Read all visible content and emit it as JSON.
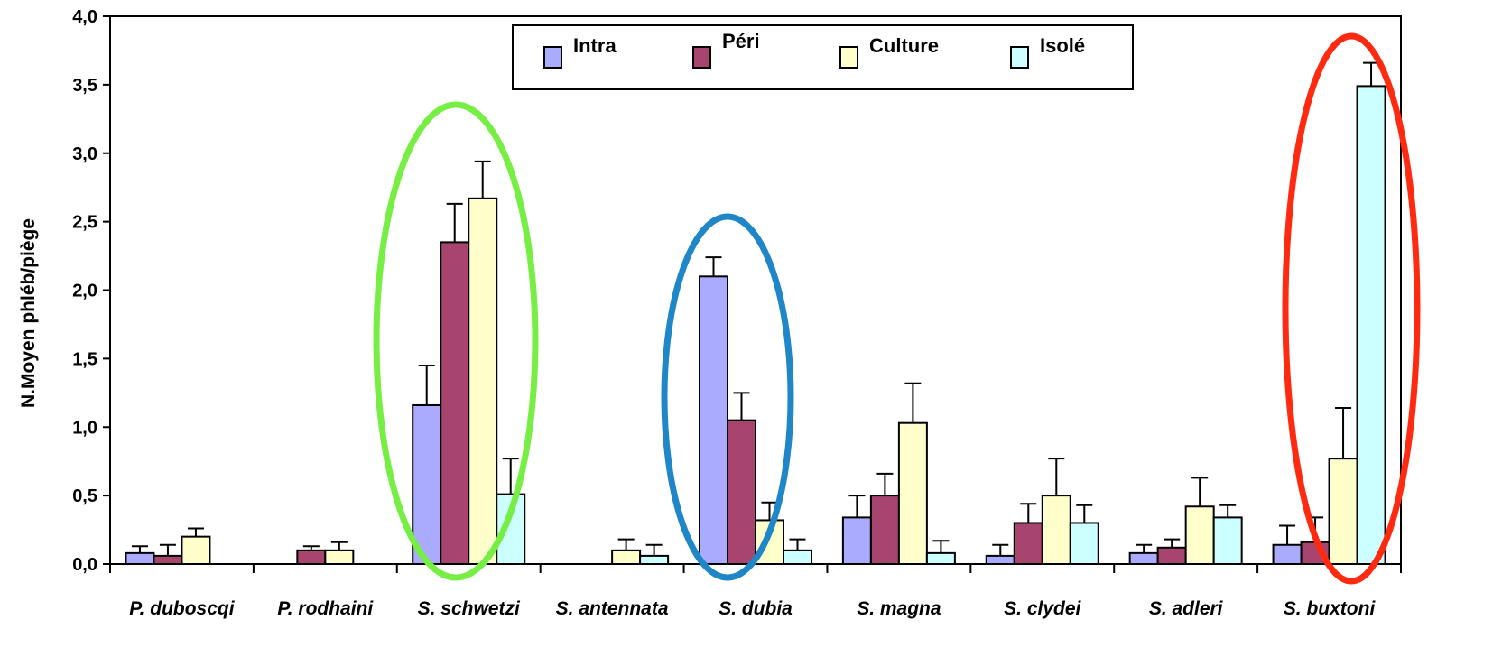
{
  "chart_data": {
    "type": "bar",
    "title": "",
    "xlabel": "",
    "ylabel": "N.Moyen phléb/piège",
    "ylim": [
      0,
      4
    ],
    "yticks": [
      "0,0",
      "0,5",
      "1,0",
      "1,5",
      "2,0",
      "2,5",
      "3,0",
      "3,5",
      "4,0"
    ],
    "categories": [
      "P. duboscqi",
      "P. rodhaini",
      "S. schwetzi",
      "S. antennata",
      "S. dubia",
      "S. magna",
      "S. clydei",
      "S. adleri",
      "S. buxtoni"
    ],
    "legend_position": "top-center",
    "series": [
      {
        "name": "Intra",
        "color": "#aaaaff",
        "values": [
          0.08,
          0,
          1.16,
          0,
          2.1,
          0.34,
          0.06,
          0.08,
          0.14
        ],
        "errors": [
          0.05,
          0,
          0.29,
          0,
          0.14,
          0.16,
          0.08,
          0.06,
          0.14
        ]
      },
      {
        "name": "Péri",
        "color": "#a8456f",
        "values": [
          0.06,
          0.1,
          2.35,
          0,
          1.05,
          0.5,
          0.3,
          0.12,
          0.16
        ],
        "errors": [
          0.08,
          0.03,
          0.28,
          0,
          0.2,
          0.16,
          0.14,
          0.06,
          0.18
        ]
      },
      {
        "name": "Culture",
        "color": "#ffffcc",
        "values": [
          0.2,
          0.1,
          2.67,
          0.1,
          0.32,
          1.03,
          0.5,
          0.42,
          0.77
        ],
        "errors": [
          0.06,
          0.06,
          0.27,
          0.08,
          0.13,
          0.29,
          0.27,
          0.21,
          0.37
        ]
      },
      {
        "name": "Isolé",
        "color": "#ccffff",
        "values": [
          0,
          0,
          0.51,
          0.06,
          0.1,
          0.08,
          0.3,
          0.34,
          3.49
        ],
        "errors": [
          0,
          0,
          0.26,
          0.08,
          0.08,
          0.09,
          0.13,
          0.09,
          0.17
        ]
      }
    ],
    "highlights": [
      {
        "category": "S. schwetzi",
        "color": "#77ee44"
      },
      {
        "category": "S. dubia",
        "color": "#1f86c8"
      },
      {
        "category": "S. buxtoni",
        "color": "#ff2a10"
      }
    ]
  }
}
